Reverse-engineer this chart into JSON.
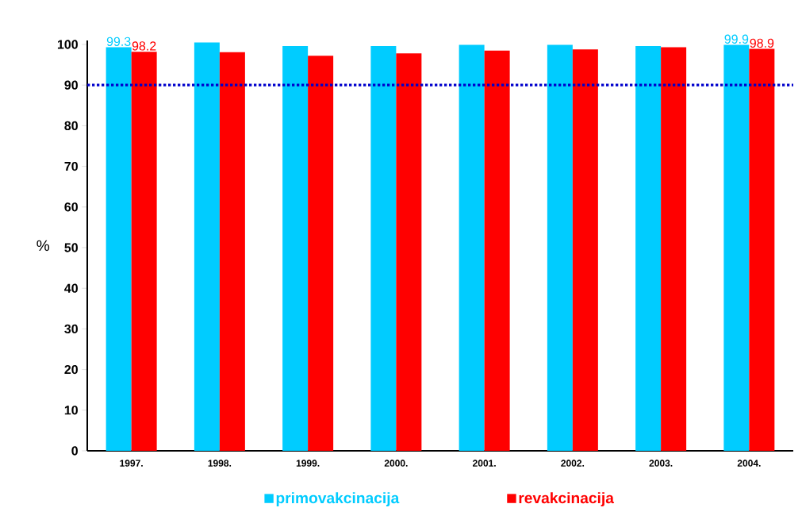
{
  "chart_data": {
    "type": "bar",
    "ylabel": "%",
    "categories": [
      "1997.",
      "1998.",
      "1999.",
      "2000.",
      "2001.",
      "2002.",
      "2003.",
      "2004."
    ],
    "series": [
      {
        "name": "primovakcinacija",
        "color": "#00ccff",
        "values": [
          99.3,
          100.5,
          99.6,
          99.6,
          99.9,
          99.9,
          99.6,
          99.9
        ],
        "value_labels": [
          "99.3",
          null,
          null,
          null,
          null,
          null,
          null,
          "99.9"
        ]
      },
      {
        "name": "revakcinacija",
        "color": "#ff0000",
        "values": [
          98.2,
          98.1,
          97.2,
          97.8,
          98.5,
          98.8,
          99.3,
          98.9
        ],
        "value_labels": [
          "98.2",
          null,
          null,
          null,
          null,
          null,
          null,
          "98.9"
        ]
      }
    ],
    "ylim": [
      0,
      101
    ],
    "yticks": [
      0,
      10,
      20,
      30,
      40,
      50,
      60,
      70,
      80,
      90,
      100
    ],
    "ref_lines": [
      {
        "axis": "y",
        "value": 90,
        "color": "#0000cc",
        "line_style": "dotted"
      }
    ],
    "legend": "bottom",
    "grid": false
  }
}
